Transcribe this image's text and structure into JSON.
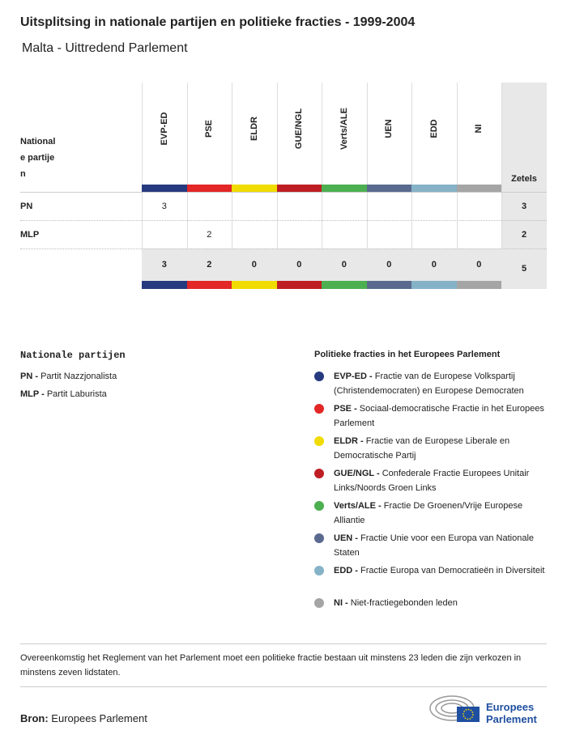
{
  "header": {
    "title": "Uitsplitsing in nationale partijen en politieke fracties - 1999-2004",
    "subtitle": "Malta - Uittredend Parlement"
  },
  "table": {
    "corner": "Nationale partijen",
    "total_label": "Zetels",
    "groups": [
      {
        "name": "EVP-ED",
        "color": "#263a7f"
      },
      {
        "name": "PSE",
        "color": "#e32626"
      },
      {
        "name": "ELDR",
        "color": "#f0dc00"
      },
      {
        "name": "GUE/NGL",
        "color": "#be1e23"
      },
      {
        "name": "Verts/ALE",
        "color": "#4caf50"
      },
      {
        "name": "UEN",
        "color": "#5a6a8f"
      },
      {
        "name": "EDD",
        "color": "#86b2c8"
      },
      {
        "name": "NI",
        "color": "#a5a5a5"
      }
    ],
    "rows": [
      {
        "party": "PN",
        "seats": [
          3,
          null,
          null,
          null,
          null,
          null,
          null,
          null
        ],
        "total": 3
      },
      {
        "party": "MLP",
        "seats": [
          null,
          2,
          null,
          null,
          null,
          null,
          null,
          null
        ],
        "total": 2
      }
    ],
    "totals": [
      3,
      2,
      0,
      0,
      0,
      0,
      0,
      0
    ],
    "grand_total": 5
  },
  "legend_parties": {
    "title": "Nationale partijen",
    "items": [
      {
        "label": "PN -",
        "text": "Partit Nazzjonalista"
      },
      {
        "label": "MLP -",
        "text": "Partit Laburista"
      }
    ]
  },
  "legend_groups": {
    "title": "Politieke fracties in het Europees Parlement",
    "items": [
      {
        "label": "EVP-ED -",
        "text": "Fractie van de Europese Volkspartij (Christendemocraten) en Europese Democraten"
      },
      {
        "label": "PSE -",
        "text": "Sociaal-democratische Fractie in het Europees Parlement"
      },
      {
        "label": "ELDR -",
        "text": "Fractie van de Europese Liberale en Democratische Partij"
      },
      {
        "label": "GUE/NGL -",
        "text": "Confederale Fractie Europees Unitair Links/Noords Groen Links"
      },
      {
        "label": "Verts/ALE -",
        "text": "Fractie De Groenen/Vrije Europese Alliantie"
      },
      {
        "label": "UEN -",
        "text": "Fractie Unie voor een Europa van Nationale Staten"
      },
      {
        "label": "EDD -",
        "text": "Fractie Europa van Democratieën in Diversiteit"
      },
      {
        "label": "NI -",
        "text": "Niet-fractiegebonden leden"
      }
    ]
  },
  "note": "Overeenkomstig het Reglement van het Parlement moet een politieke fractie bestaan uit minstens 23 leden die zijn verkozen in minstens zeven lidstaten.",
  "source": {
    "label": "Bron:",
    "text": "Europees Parlement"
  },
  "logo": {
    "line1": "Europees",
    "line2": "Parlement"
  }
}
